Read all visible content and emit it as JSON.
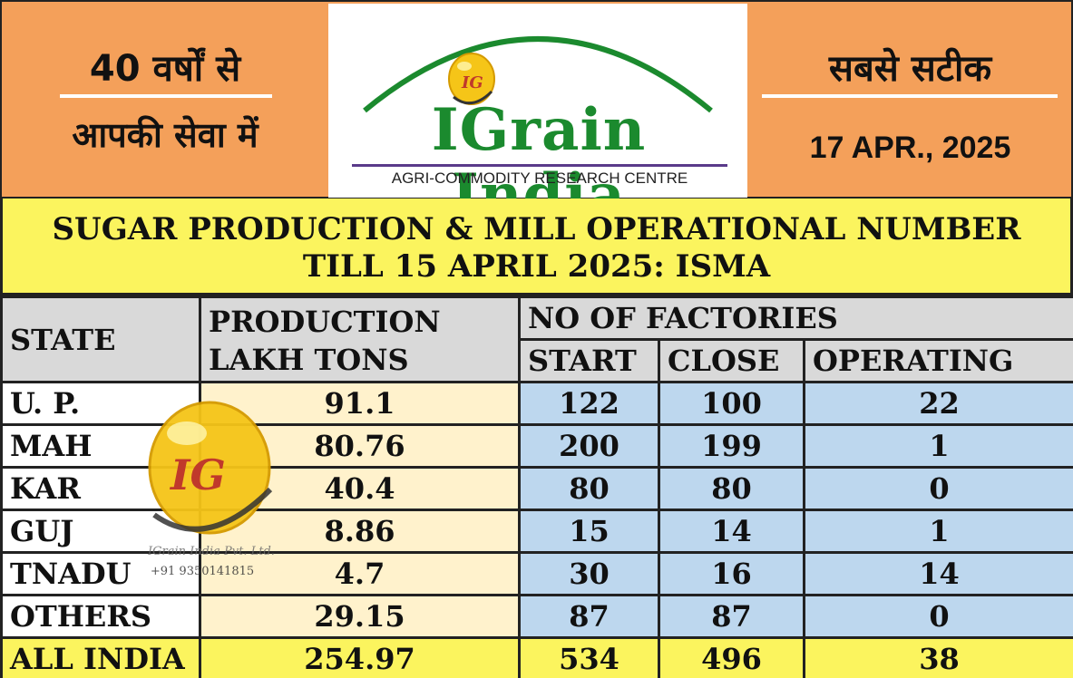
{
  "banner": {
    "left_line1": "40 वर्षों से",
    "left_line2": "आपकी सेवा में",
    "brand_name": "IGrain India",
    "brand_subtitle": "AGRI-COMMODITY RESEARCH CENTRE",
    "logo_mark": "IG",
    "right_line1": "सबसे सटीक",
    "date": "17 APR., 2025",
    "colors": {
      "banner_bg": "#f4a05a",
      "brand_green": "#1b8a2e",
      "gold": "#f5c518"
    }
  },
  "title": "SUGAR PRODUCTION & MILL OPERATIONAL NUMBER TILL 15 APRIL 2025: ISMA",
  "table": {
    "headers": {
      "state": "STATE",
      "production_line1": "PRODUCTION",
      "production_line2": "LAKH TONS",
      "factories": "NO OF FACTORIES",
      "start": "START",
      "close": "CLOSE",
      "operating": "OPERATING"
    },
    "rows": [
      {
        "state": "U. P.",
        "production": "91.1",
        "start": "122",
        "close": "100",
        "operating": "22"
      },
      {
        "state": "MAH",
        "production": "80.76",
        "start": "200",
        "close": "199",
        "operating": "1"
      },
      {
        "state": "KAR",
        "production": "40.4",
        "start": "80",
        "close": "80",
        "operating": "0"
      },
      {
        "state": "GUJ",
        "production": "8.86",
        "start": "15",
        "close": "14",
        "operating": "1"
      },
      {
        "state": "TNADU",
        "production": "4.7",
        "start": "30",
        "close": "16",
        "operating": "14"
      },
      {
        "state": "OTHERS",
        "production": "29.15",
        "start": "87",
        "close": "87",
        "operating": "0"
      }
    ],
    "total": {
      "state": "ALL INDIA",
      "production": "254.97",
      "start": "534",
      "close": "496",
      "operating": "38"
    },
    "colors": {
      "header": "#d9d9d9",
      "production": "#fff2cc",
      "factories": "#bdd7ee",
      "total": "#fbf45e"
    }
  },
  "watermark": {
    "logo_mark": "IG",
    "company": "IGrain India Pvt. Ltd.",
    "phone": "+91 9350141815"
  }
}
